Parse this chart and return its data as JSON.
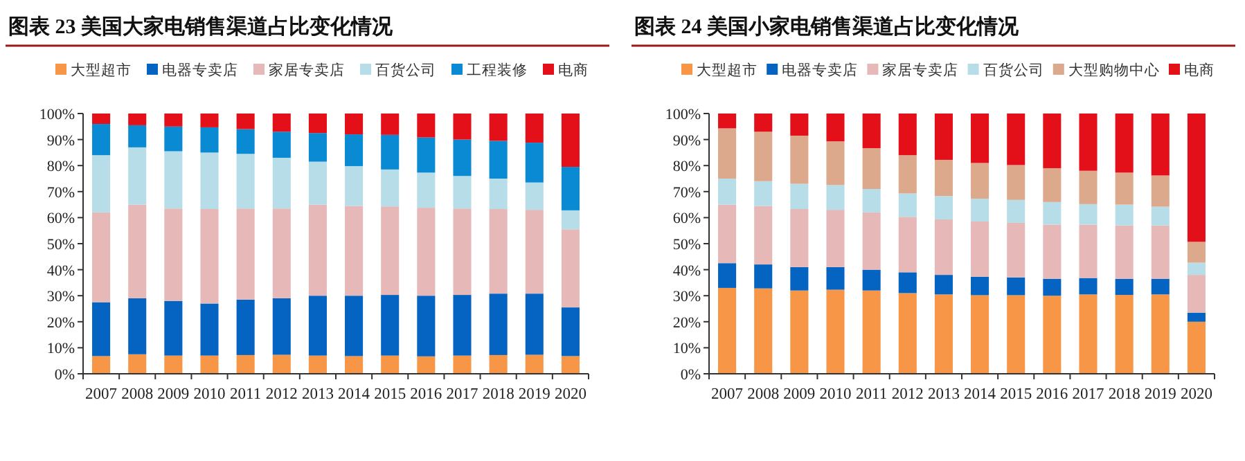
{
  "chart_data": [
    {
      "type": "bar",
      "title": "图表 23   美国大家电销售渠道占比变化情况",
      "stacked": true,
      "legend": "top",
      "grid": false,
      "categories": [
        "2007",
        "2008",
        "2009",
        "2010",
        "2011",
        "2012",
        "2013",
        "2014",
        "2015",
        "2016",
        "2017",
        "2018",
        "2019",
        "2020"
      ],
      "ylim": [
        0,
        100
      ],
      "yticks": [
        {
          "value": 0,
          "label": "0%"
        },
        {
          "value": 10,
          "label": "10%"
        },
        {
          "value": 20,
          "label": "20%"
        },
        {
          "value": 30,
          "label": "30%"
        },
        {
          "value": 40,
          "label": "40%"
        },
        {
          "value": 50,
          "label": "50%"
        },
        {
          "value": 60,
          "label": "60%"
        },
        {
          "value": 70,
          "label": "70%"
        },
        {
          "value": 80,
          "label": "80%"
        },
        {
          "value": 90,
          "label": "90%"
        },
        {
          "value": 100,
          "label": "100%"
        }
      ],
      "series": [
        {
          "name": "大型超市",
          "color": "#f79646",
          "values": [
            6.8,
            7.5,
            7,
            7,
            7.2,
            7.3,
            7,
            6.8,
            7,
            6.7,
            7,
            7.2,
            7.3,
            6.8
          ]
        },
        {
          "name": "电器专卖店",
          "color": "#0563c1",
          "values": [
            20.7,
            21.5,
            21,
            20,
            21.3,
            21.7,
            23,
            23.2,
            23.3,
            23.3,
            23.3,
            23.6,
            23.5,
            18.7
          ]
        },
        {
          "name": "家居专卖店",
          "color": "#e6b9b8",
          "values": [
            34.5,
            36,
            35.5,
            36.3,
            35,
            34.5,
            35,
            34.5,
            34,
            33.8,
            33.2,
            32.5,
            32.2,
            30
          ]
        },
        {
          "name": "百货公司",
          "color": "#b7dde8",
          "values": [
            22,
            22,
            22,
            21.7,
            21,
            19.5,
            16.5,
            15.3,
            14.2,
            13.5,
            12.5,
            11.7,
            10.5,
            7.3
          ]
        },
        {
          "name": "工程装修",
          "color": "#0a8ad2",
          "values": [
            12,
            8.5,
            9.5,
            9.7,
            9.5,
            10,
            11,
            12.2,
            13.3,
            13.5,
            14,
            14.5,
            15.3,
            16.7
          ]
        },
        {
          "name": "电商",
          "color": "#e3101a",
          "values": [
            4,
            4.5,
            5,
            5.3,
            6,
            7,
            7.5,
            8,
            8.2,
            9.2,
            10,
            10.5,
            11.2,
            20.5
          ]
        }
      ]
    },
    {
      "type": "bar",
      "title": "图表 24   美国小家电销售渠道占比变化情况",
      "stacked": true,
      "legend": "top",
      "grid": false,
      "categories": [
        "2007",
        "2008",
        "2009",
        "2010",
        "2011",
        "2012",
        "2013",
        "2014",
        "2015",
        "2016",
        "2017",
        "2018",
        "2019",
        "2020"
      ],
      "ylim": [
        0,
        100
      ],
      "yticks": [
        {
          "value": 0,
          "label": "0%"
        },
        {
          "value": 10,
          "label": "10%"
        },
        {
          "value": 20,
          "label": "20%"
        },
        {
          "value": 30,
          "label": "30%"
        },
        {
          "value": 40,
          "label": "40%"
        },
        {
          "value": 50,
          "label": "50%"
        },
        {
          "value": 60,
          "label": "60%"
        },
        {
          "value": 70,
          "label": "70%"
        },
        {
          "value": 80,
          "label": "80%"
        },
        {
          "value": 90,
          "label": "90%"
        },
        {
          "value": 100,
          "label": "100%"
        }
      ],
      "series": [
        {
          "name": "大型超市",
          "color": "#f79646",
          "values": [
            33,
            32.8,
            32,
            32.3,
            32,
            31,
            30.5,
            30.2,
            30.2,
            30,
            30.5,
            30.3,
            30.5,
            20
          ]
        },
        {
          "name": "电器专卖店",
          "color": "#0563c1",
          "values": [
            9.5,
            9.2,
            9,
            8.7,
            8,
            8,
            7.5,
            7.1,
            6.8,
            6.5,
            6.3,
            6.2,
            6,
            3.5
          ]
        },
        {
          "name": "家居专卖店",
          "color": "#e6b9b8",
          "values": [
            22.5,
            22.5,
            22.3,
            22,
            22,
            21.3,
            21.3,
            21.2,
            21,
            20.8,
            20.5,
            20.5,
            20.5,
            14.5
          ]
        },
        {
          "name": "百货公司",
          "color": "#b7dde8",
          "values": [
            10,
            9.5,
            9.7,
            9.5,
            9,
            9,
            9,
            8.8,
            8.8,
            8.7,
            7.9,
            8,
            7.2,
            4.7
          ]
        },
        {
          "name": "大型购物中心",
          "color": "#dca98c",
          "values": [
            19.3,
            19,
            18.5,
            16.8,
            15.7,
            14.7,
            13.9,
            13.7,
            13.4,
            13,
            12.8,
            12.3,
            12,
            8
          ]
        },
        {
          "name": "电商",
          "color": "#e3101a",
          "values": [
            5.7,
            7,
            8.5,
            10.7,
            13.3,
            16,
            17.8,
            19,
            19.8,
            21,
            22,
            22.7,
            23.8,
            49.3
          ]
        }
      ]
    }
  ]
}
